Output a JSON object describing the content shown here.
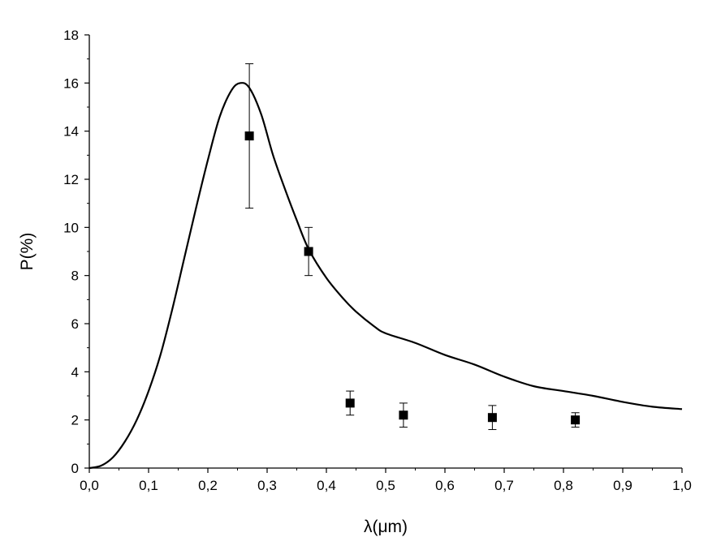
{
  "chart_data": {
    "type": "scatter",
    "xlabel": "λ(μm)",
    "ylabel": "P(%)",
    "xlim": [
      0.0,
      1.0
    ],
    "ylim": [
      0,
      18
    ],
    "x_ticks": [
      0.0,
      0.1,
      0.2,
      0.3,
      0.4,
      0.5,
      0.6,
      0.7,
      0.8,
      0.9,
      1.0
    ],
    "x_tick_labels": [
      "0,0",
      "0,1",
      "0,2",
      "0,3",
      "0,4",
      "0,5",
      "0,6",
      "0,7",
      "0,8",
      "0,9",
      "1,0"
    ],
    "y_ticks": [
      0,
      2,
      4,
      6,
      8,
      10,
      12,
      14,
      16,
      18
    ],
    "y_tick_labels": [
      "0",
      "2",
      "4",
      "6",
      "8",
      "10",
      "12",
      "14",
      "16",
      "18"
    ],
    "grid": false,
    "legend": "none",
    "series": [
      {
        "kind": "line",
        "color": "#000000",
        "points": [
          [
            0.0,
            0.0
          ],
          [
            0.02,
            0.1
          ],
          [
            0.04,
            0.45
          ],
          [
            0.06,
            1.1
          ],
          [
            0.08,
            2.0
          ],
          [
            0.1,
            3.2
          ],
          [
            0.12,
            4.7
          ],
          [
            0.14,
            6.6
          ],
          [
            0.16,
            8.7
          ],
          [
            0.18,
            10.8
          ],
          [
            0.2,
            12.8
          ],
          [
            0.22,
            14.6
          ],
          [
            0.24,
            15.7
          ],
          [
            0.255,
            16.0
          ],
          [
            0.27,
            15.8
          ],
          [
            0.29,
            14.7
          ],
          [
            0.31,
            13.0
          ],
          [
            0.33,
            11.6
          ],
          [
            0.35,
            10.3
          ],
          [
            0.37,
            9.1
          ],
          [
            0.4,
            7.9
          ],
          [
            0.43,
            7.0
          ],
          [
            0.45,
            6.5
          ],
          [
            0.48,
            5.9
          ],
          [
            0.5,
            5.6
          ],
          [
            0.55,
            5.2
          ],
          [
            0.6,
            4.7
          ],
          [
            0.65,
            4.3
          ],
          [
            0.7,
            3.8
          ],
          [
            0.75,
            3.4
          ],
          [
            0.8,
            3.2
          ],
          [
            0.85,
            3.0
          ],
          [
            0.9,
            2.75
          ],
          [
            0.95,
            2.55
          ],
          [
            1.0,
            2.45
          ]
        ]
      },
      {
        "kind": "scatter",
        "marker": "square",
        "color": "#000000",
        "points": [
          {
            "x": 0.27,
            "y": 13.8,
            "err": 3.0
          },
          {
            "x": 0.37,
            "y": 9.0,
            "err": 1.0
          },
          {
            "x": 0.44,
            "y": 2.7,
            "err": 0.5
          },
          {
            "x": 0.53,
            "y": 2.2,
            "err": 0.5
          },
          {
            "x": 0.68,
            "y": 2.1,
            "err": 0.5
          },
          {
            "x": 0.82,
            "y": 2.0,
            "err": 0.3
          }
        ]
      }
    ]
  }
}
